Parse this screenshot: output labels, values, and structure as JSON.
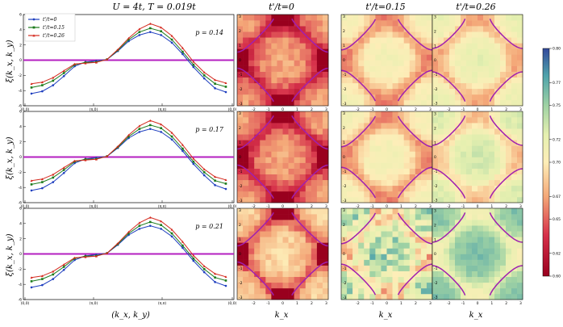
{
  "chart_data": {
    "type": "figure",
    "suptitle": "U = 4t, T = 0.019t",
    "line_panels": {
      "type": "line",
      "xlabel": "(k_x, k_y)",
      "ylabel": "ξ(k_x, k_y)",
      "xticklabels": [
        "(0,0)",
        "(π,0)",
        "(π,π)",
        "(0,0)"
      ],
      "yticks": [
        "-6",
        "-4",
        "-2",
        "0",
        "2",
        "4",
        "6"
      ],
      "ylim": [
        -6,
        6
      ],
      "colors": [
        "#1f3fbf",
        "#1b7a1b",
        "#d42a1f"
      ],
      "legend": [
        "t'/t=0",
        "t'/t=0.15",
        "t'/t=0.26"
      ],
      "rows": [
        {
          "p_label": "p = 0.14",
          "series": [
            {
              "name": "t'/t=0",
              "values": [
                -4.4,
                -4.1,
                -3.3,
                -2.1,
                -0.8,
                -0.25,
                -0.1,
                0.1,
                1.2,
                2.5,
                3.3,
                3.7,
                3.3,
                2.3,
                0.8,
                -0.9,
                -2.4,
                -3.7,
                -4.2
              ]
            },
            {
              "name": "t'/t=0.15",
              "values": [
                -3.6,
                -3.3,
                -2.7,
                -1.7,
                -0.6,
                -0.3,
                -0.25,
                0.1,
                1.3,
                2.7,
                3.7,
                4.2,
                3.8,
                2.7,
                1.1,
                -0.6,
                -2.0,
                -3.1,
                -3.5
              ]
            },
            {
              "name": "t'/t=0.26",
              "values": [
                -3.1,
                -2.9,
                -2.3,
                -1.4,
                -0.5,
                -0.4,
                -0.3,
                0.1,
                1.4,
                2.9,
                4.1,
                4.8,
                4.3,
                3.2,
                1.6,
                -0.2,
                -1.6,
                -2.6,
                -3.0
              ]
            }
          ]
        },
        {
          "p_label": "p = 0.17",
          "series": [
            {
              "name": "t'/t=0",
              "values": [
                -4.4,
                -4.1,
                -3.3,
                -2.1,
                -0.8,
                -0.25,
                -0.1,
                0.1,
                1.2,
                2.5,
                3.3,
                3.7,
                3.3,
                2.3,
                0.8,
                -0.9,
                -2.4,
                -3.7,
                -4.2
              ]
            },
            {
              "name": "t'/t=0.15",
              "values": [
                -3.6,
                -3.3,
                -2.7,
                -1.7,
                -0.6,
                -0.3,
                -0.25,
                0.1,
                1.3,
                2.7,
                3.7,
                4.2,
                3.8,
                2.7,
                1.1,
                -0.6,
                -2.0,
                -3.1,
                -3.5
              ]
            },
            {
              "name": "t'/t=0.26",
              "values": [
                -3.1,
                -2.9,
                -2.3,
                -1.4,
                -0.5,
                -0.4,
                -0.3,
                0.1,
                1.4,
                2.9,
                4.1,
                4.8,
                4.3,
                3.2,
                1.6,
                -0.2,
                -1.6,
                -2.6,
                -3.0
              ]
            }
          ]
        },
        {
          "p_label": "p = 0.21",
          "series": [
            {
              "name": "t'/t=0",
              "values": [
                -4.4,
                -4.1,
                -3.3,
                -2.1,
                -0.8,
                -0.25,
                -0.1,
                0.1,
                1.2,
                2.5,
                3.3,
                3.7,
                3.3,
                2.3,
                0.8,
                -0.9,
                -2.4,
                -3.7,
                -4.2
              ]
            },
            {
              "name": "t'/t=0.15",
              "values": [
                -3.6,
                -3.3,
                -2.7,
                -1.7,
                -0.6,
                -0.3,
                -0.25,
                0.1,
                1.3,
                2.7,
                3.7,
                4.2,
                3.8,
                2.7,
                1.1,
                -0.6,
                -2.0,
                -3.1,
                -3.5
              ]
            },
            {
              "name": "t'/t=0.26",
              "values": [
                -3.1,
                -2.9,
                -2.3,
                -1.4,
                -0.5,
                -0.4,
                -0.3,
                0.1,
                1.4,
                2.9,
                4.1,
                4.8,
                4.3,
                3.2,
                1.6,
                -0.2,
                -1.6,
                -2.6,
                -3.0
              ]
            }
          ]
        }
      ]
    },
    "heatmaps": {
      "type": "heatmap",
      "column_titles": [
        "t'/t=0",
        "t'/t=0.15",
        "t'/t=0.26"
      ],
      "xlabel": "k_x",
      "xticks": [
        "-2",
        "-1",
        "0",
        "1",
        "2",
        "3"
      ],
      "yticks": [
        "3",
        "2",
        "1",
        "0",
        "-1",
        "-2",
        "-3"
      ],
      "kgrid": 16,
      "colorbar": {
        "min": 0.6,
        "max": 0.8,
        "ticks": [
          "0.80",
          "0.77",
          "0.75",
          "0.72",
          "0.70",
          "0.67",
          "0.65",
          "0.62",
          "0.60"
        ]
      },
      "fermi_surface_color": "#a01fb0",
      "panel_base_values": [
        [
          0.66,
          0.7,
          0.71
        ],
        [
          0.66,
          0.7,
          0.72
        ],
        [
          0.68,
          0.73,
          0.75
        ]
      ]
    }
  }
}
